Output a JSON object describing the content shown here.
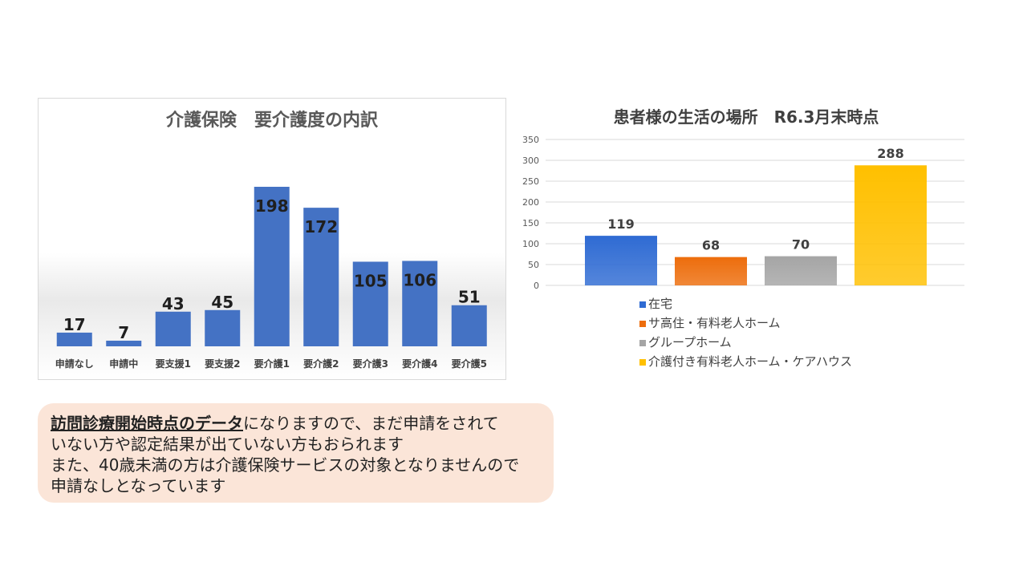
{
  "chart_data": [
    {
      "type": "bar",
      "title": "介護保険　要介護度の内訳",
      "categories": [
        "申請なし",
        "申請中",
        "要支援1",
        "要支援2",
        "要介護1",
        "要介護2",
        "要介護3",
        "要介護4",
        "要介護5"
      ],
      "values": [
        17,
        7,
        43,
        45,
        198,
        172,
        105,
        106,
        51
      ],
      "ylim": [
        0,
        198
      ],
      "grid": false,
      "legend": "none",
      "colors": {
        "bar": "#4472c4"
      }
    },
    {
      "type": "bar",
      "title": "患者様の生活の場所　R6.3月末時点",
      "categories": [
        "在宅",
        "サ高住・有料老人ホーム",
        "グループホーム",
        "介護付き有料老人ホーム・ケアハウス"
      ],
      "values": [
        119,
        68,
        70,
        288
      ],
      "ylim": [
        0,
        350
      ],
      "yticks": [
        0,
        50,
        100,
        150,
        200,
        250,
        300,
        350
      ],
      "grid": true,
      "legend": "bottom",
      "colors": [
        "#2f6bd3",
        "#ed6d0c",
        "#a5a5a5",
        "#ffc000"
      ]
    }
  ],
  "note": {
    "emphasis": "訪問診療開始時点のデータ",
    "line1_rest": "になりますので、まだ申請をされて",
    "line2": "いない方や認定結果が出ていない方もおられます",
    "line3": "また、40歳未満の方は介護保険サービスの対象となりませんので",
    "line4": "申請なしとなっています"
  }
}
